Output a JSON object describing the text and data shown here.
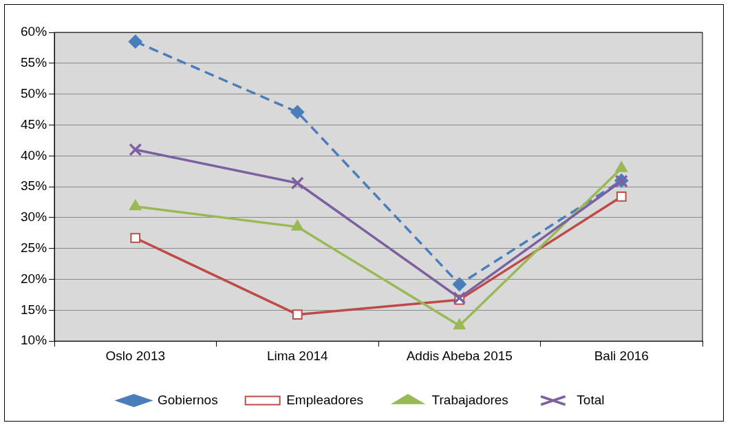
{
  "chart_data": {
    "type": "line",
    "categories": [
      "Oslo 2013",
      "Lima 2014",
      "Addis Abeba 2015",
      "Bali 2016"
    ],
    "series": [
      {
        "name": "Gobiernos",
        "color": "#4a7ebb",
        "marker": "diamond",
        "line_style": "dashed",
        "values": [
          58.5,
          47.1,
          19.2,
          36
        ]
      },
      {
        "name": "Empleadores",
        "color": "#be4b48",
        "marker": "square",
        "line_style": "solid",
        "values": [
          26.7,
          14.3,
          16.7,
          33.4
        ]
      },
      {
        "name": "Trabajadores",
        "color": "#98b954",
        "marker": "triangle",
        "line_style": "solid",
        "values": [
          31.8,
          28.5,
          12.5,
          38
        ]
      },
      {
        "name": "Total",
        "color": "#7d60a0",
        "marker": "cross",
        "line_style": "solid",
        "values": [
          41,
          35.6,
          17,
          35.9
        ]
      }
    ],
    "ylim": [
      10,
      60
    ],
    "yticks": [
      {
        "value": 10,
        "label": "10%"
      },
      {
        "value": 15,
        "label": "15%"
      },
      {
        "value": 20,
        "label": "20%"
      },
      {
        "value": 25,
        "label": "25%"
      },
      {
        "value": 30,
        "label": "30%"
      },
      {
        "value": 35,
        "label": "35%"
      },
      {
        "value": 40,
        "label": "40%"
      },
      {
        "value": 45,
        "label": "45%"
      },
      {
        "value": 50,
        "label": "50%"
      },
      {
        "value": 55,
        "label": "55%"
      },
      {
        "value": 60,
        "label": "60%"
      }
    ],
    "grid": "y",
    "legend": "bottom"
  }
}
